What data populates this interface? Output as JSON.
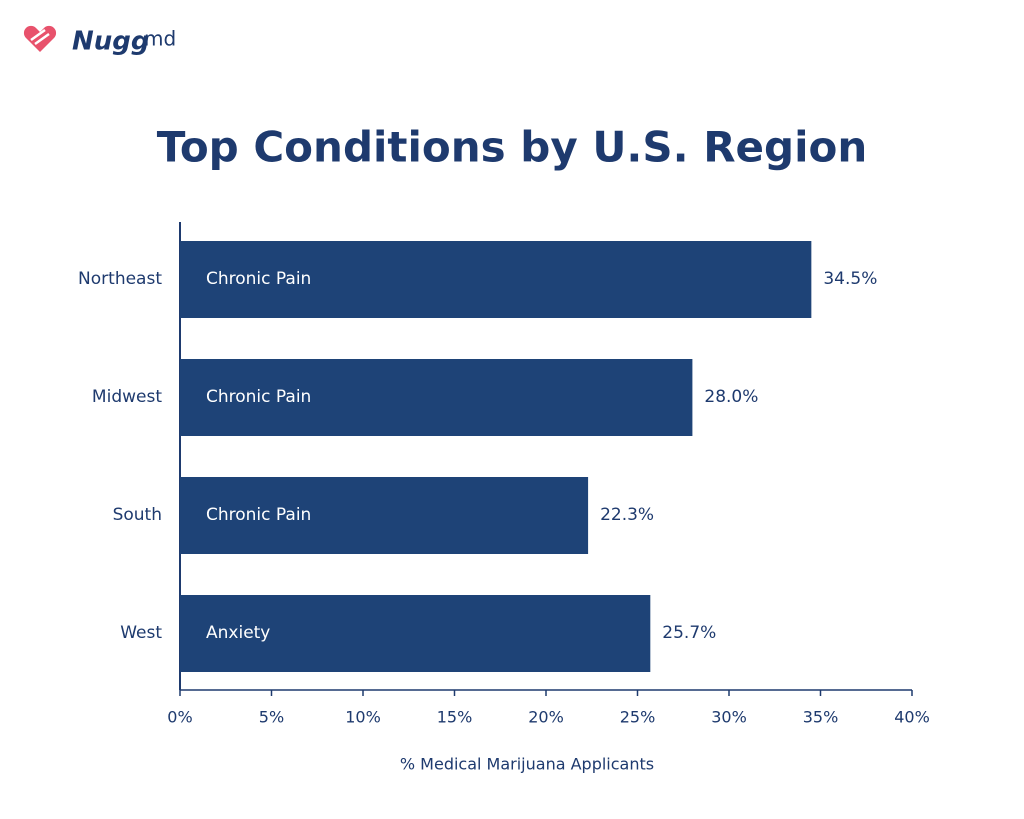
{
  "header": {
    "brand": "Nugg",
    "brand_suffix": "md"
  },
  "chart_data": {
    "type": "hbar",
    "title": "Top Conditions by U.S. Region",
    "categories": [
      "Northeast",
      "Midwest",
      "South",
      "West"
    ],
    "values": [
      34.5,
      28.0,
      22.3,
      25.7
    ],
    "value_labels": [
      "34.5%",
      "28.0%",
      "22.3%",
      "25.7%"
    ],
    "bar_labels": [
      "Chronic Pain",
      "Chronic Pain",
      "Chronic Pain",
      "Anxiety"
    ],
    "color": "#1e4377",
    "xlabel": "% Medical Marijuana Applicants",
    "xlim": [
      0,
      40
    ],
    "xticks": [
      {
        "value": 0,
        "label": "0%"
      },
      {
        "value": 5,
        "label": "5%"
      },
      {
        "value": 10,
        "label": "10%"
      },
      {
        "value": 15,
        "label": "15%"
      },
      {
        "value": 20,
        "label": "20%"
      },
      {
        "value": 25,
        "label": "25%"
      },
      {
        "value": 30,
        "label": "30%"
      },
      {
        "value": 35,
        "label": "35%"
      },
      {
        "value": 40,
        "label": "40%"
      }
    ],
    "grid": false
  }
}
